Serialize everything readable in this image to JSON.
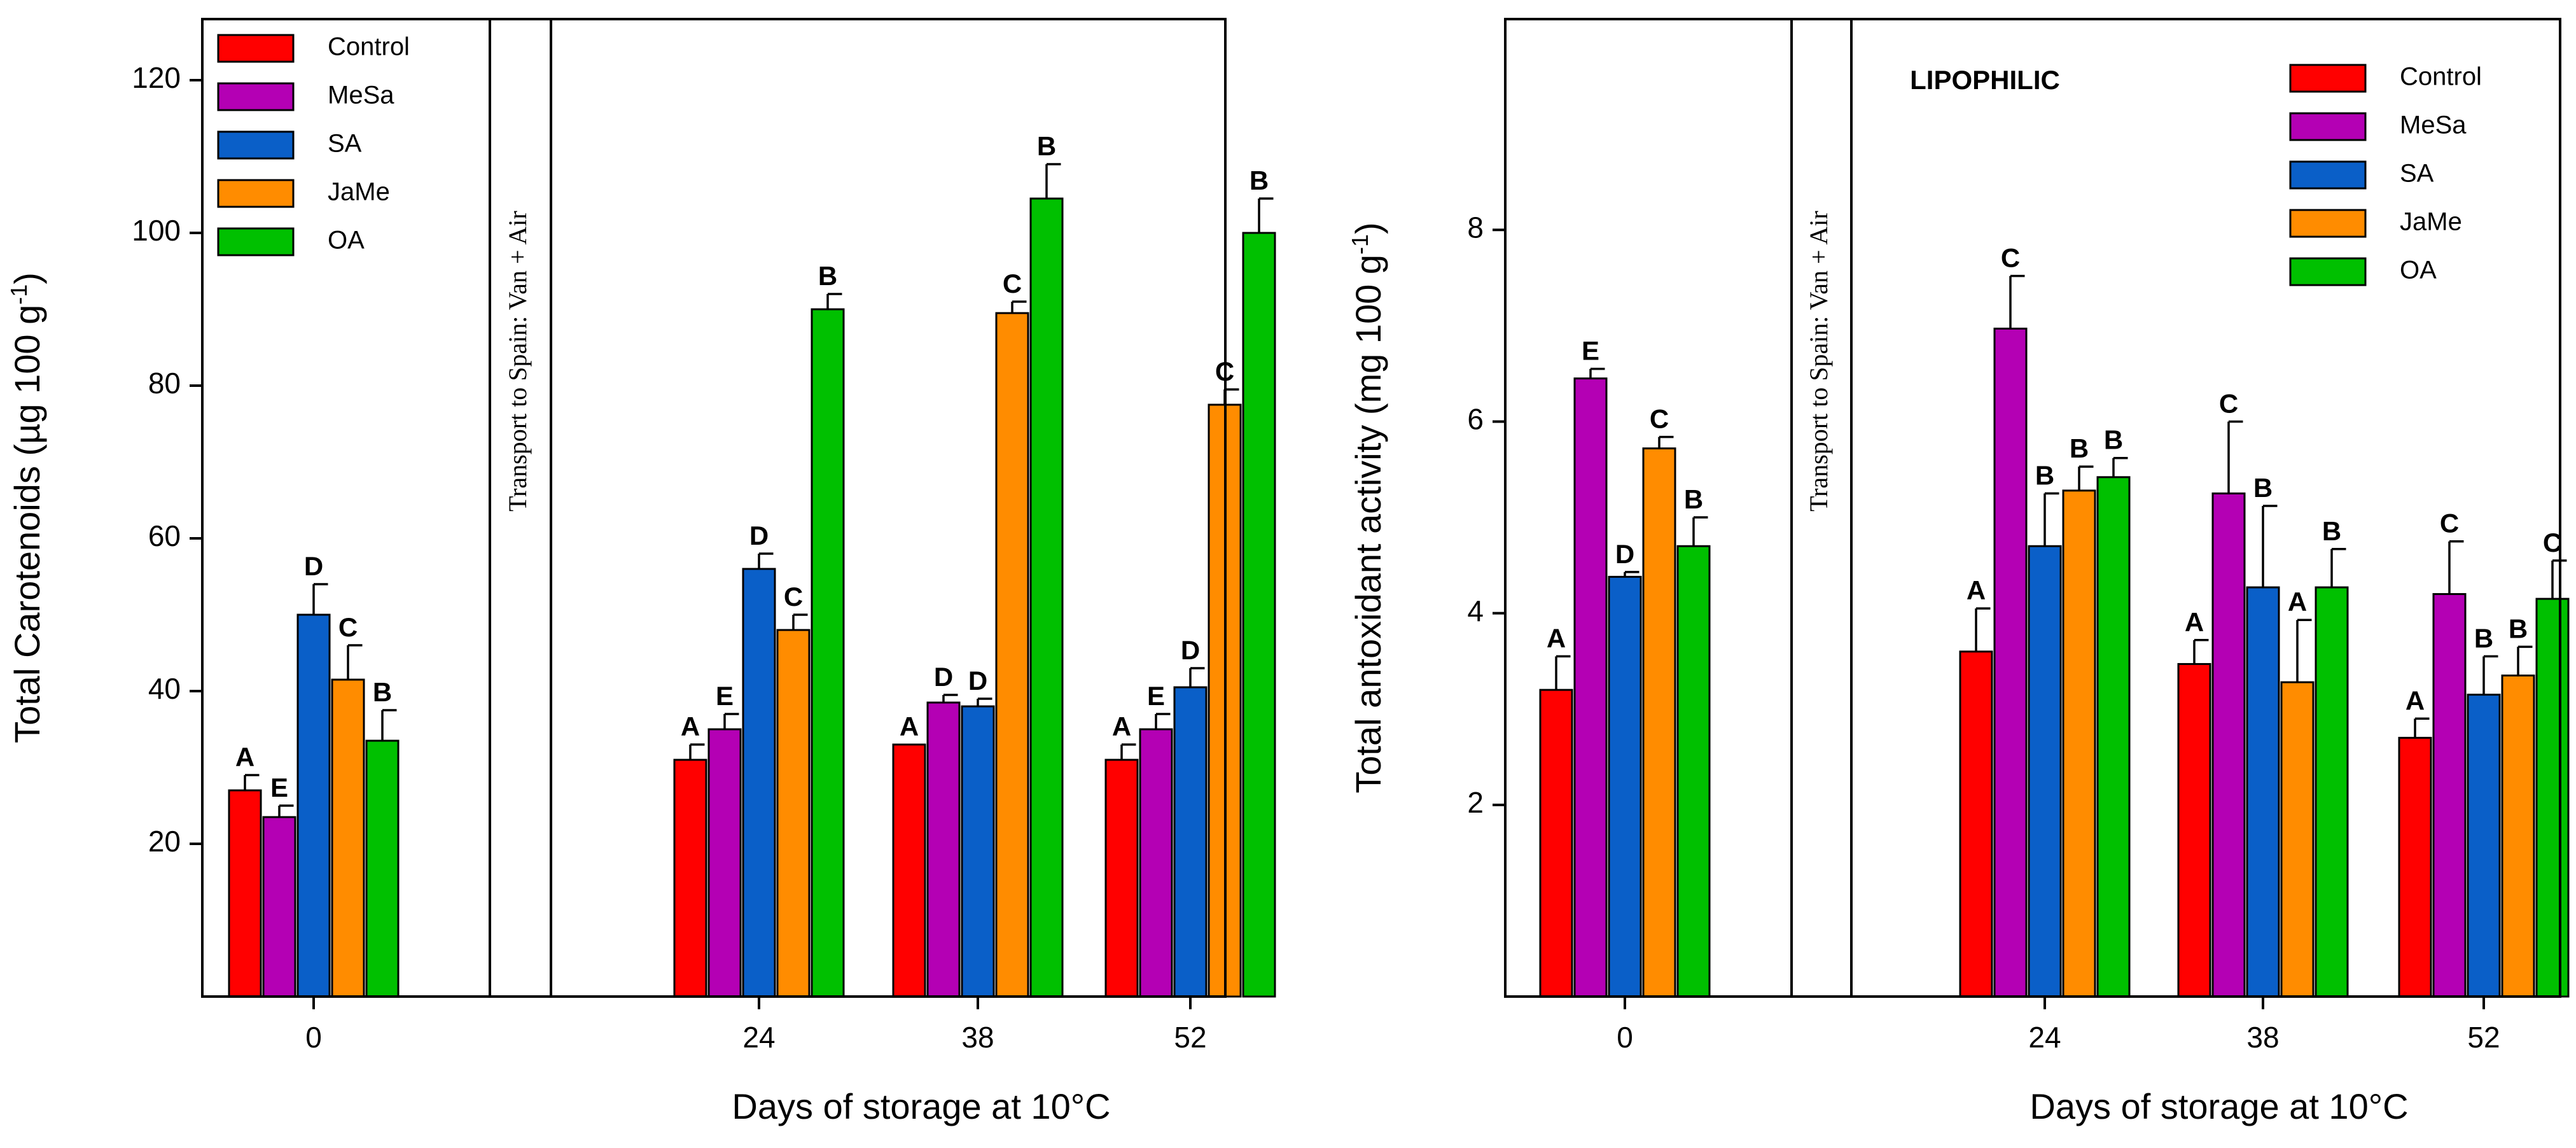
{
  "colors": {
    "Control": "#ff0000",
    "MeSa": "#b400b4",
    "SA": "#0a5fc8",
    "JaMe": "#ff8c00",
    "OA": "#00c000"
  },
  "chart_data": [
    {
      "type": "bar",
      "id": "left",
      "ylabel_main": "Total Carotenoids (µg 100 g",
      "ylabel_sup": "-1",
      "ylabel_close": ")",
      "xlabel": "Days of storage at 10°C",
      "ylim": [
        0,
        128
      ],
      "yticks": [
        20,
        40,
        60,
        80,
        100,
        120
      ],
      "categories": [
        "0",
        "24",
        "38",
        "52"
      ],
      "annotation": "Transport to Spain: Van + Air",
      "series": [
        {
          "name": "Control",
          "values": [
            27,
            31,
            33,
            31
          ],
          "errors": [
            2,
            2,
            0,
            2
          ],
          "letters": [
            "A",
            "A",
            "A",
            "A"
          ]
        },
        {
          "name": "MeSa",
          "values": [
            23.5,
            35,
            38.5,
            35
          ],
          "errors": [
            1.5,
            2,
            1,
            2
          ],
          "letters": [
            "E",
            "E",
            "D",
            "E"
          ]
        },
        {
          "name": "SA",
          "values": [
            50,
            56,
            38,
            40.5
          ],
          "errors": [
            4,
            2,
            1,
            2.5
          ],
          "letters": [
            "D",
            "D",
            "D",
            "D"
          ]
        },
        {
          "name": "JaMe",
          "values": [
            41.5,
            48,
            89.5,
            77.5
          ],
          "errors": [
            4.5,
            2,
            1.5,
            2
          ],
          "letters": [
            "C",
            "C",
            "C",
            "C"
          ]
        },
        {
          "name": "OA",
          "values": [
            33.5,
            90,
            104.5,
            100
          ],
          "errors": [
            4,
            2,
            4.5,
            4.5
          ],
          "letters": [
            "B",
            "B",
            "B",
            "B"
          ]
        }
      ],
      "legend_position": "top-left"
    },
    {
      "type": "bar",
      "id": "right",
      "title": "LIPOPHILIC",
      "ylabel_main": "Total antoxidant activity (mg 100 g",
      "ylabel_sup": "-1",
      "ylabel_close": ")",
      "xlabel": "Days of storage at 10°C",
      "ylim": [
        0,
        10.2
      ],
      "yticks": [
        2,
        4,
        6,
        8
      ],
      "categories": [
        "0",
        "24",
        "38",
        "52"
      ],
      "annotation": "Transport to Spain: Van + Air",
      "series": [
        {
          "name": "Control",
          "values": [
            3.2,
            3.6,
            3.47,
            2.7
          ],
          "errors": [
            0.35,
            0.45,
            0.25,
            0.2
          ],
          "letters": [
            "A",
            "A",
            "A",
            "A"
          ]
        },
        {
          "name": "MeSa",
          "values": [
            6.45,
            6.97,
            5.25,
            4.2
          ],
          "errors": [
            0.1,
            0.55,
            0.75,
            0.55
          ],
          "letters": [
            "E",
            "C",
            "C",
            "C"
          ]
        },
        {
          "name": "SA",
          "values": [
            4.38,
            4.7,
            4.27,
            3.15
          ],
          "errors": [
            0.05,
            0.55,
            0.85,
            0.4
          ],
          "letters": [
            "D",
            "B",
            "B",
            "B"
          ]
        },
        {
          "name": "JaMe",
          "values": [
            5.72,
            5.28,
            3.28,
            3.35
          ],
          "errors": [
            0.12,
            0.25,
            0.65,
            0.3
          ],
          "letters": [
            "C",
            "B",
            "A",
            "B"
          ]
        },
        {
          "name": "OA",
          "values": [
            4.7,
            5.42,
            4.27,
            4.15
          ],
          "errors": [
            0.3,
            0.2,
            0.4,
            0.4
          ],
          "letters": [
            "B",
            "B",
            "B",
            "C"
          ]
        }
      ],
      "legend_position": "top-right"
    }
  ]
}
